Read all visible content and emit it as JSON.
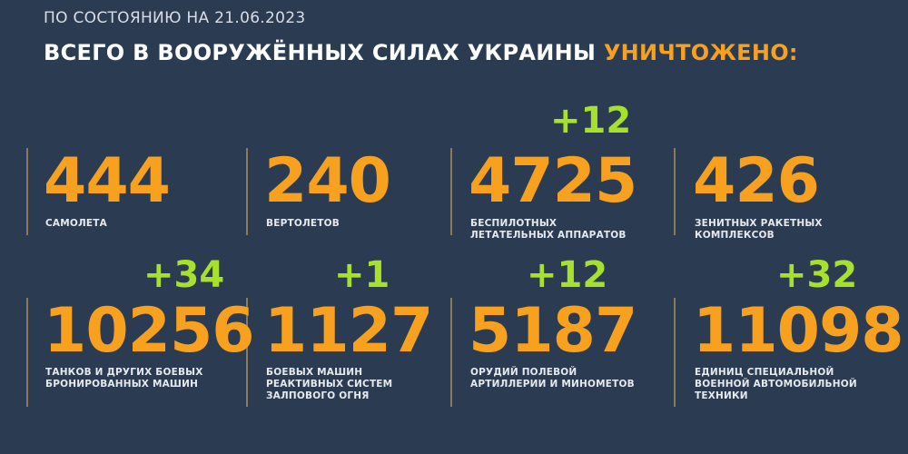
{
  "header": {
    "date_line": "ПО СОСТОЯНИЮ НА 21.06.2023",
    "title_main": "ВСЕГО В ВООРУЖЁННЫХ СИЛАХ УКРАИНЫ ",
    "title_highlight": "УНИЧТОЖЕНО:"
  },
  "colors": {
    "background": "#2a3b52",
    "number": "#f7a11f",
    "delta": "#a8e12b",
    "highlight": "#f7a11f"
  },
  "stats": [
    {
      "value": "444",
      "label": "САМОЛЕТА",
      "delta": ""
    },
    {
      "value": "240",
      "label": "ВЕРТОЛЕТОВ",
      "delta": ""
    },
    {
      "value": "4725",
      "label": "БЕСПИЛОТНЫХ\nЛЕТАТЕЛЬНЫХ АППАРАТОВ",
      "delta": "+12"
    },
    {
      "value": "426",
      "label": "ЗЕНИТНЫХ РАКЕТНЫХ\nКОМПЛЕКСОВ",
      "delta": ""
    },
    {
      "value": "10256",
      "label": "ТАНКОВ И ДРУГИХ БОЕВЫХ\nБРОНИРОВАННЫХ МАШИН",
      "delta": "+34"
    },
    {
      "value": "1127",
      "label": "БОЕВЫХ МАШИН\nРЕАКТИВНЫХ СИСТЕМ\nЗАЛПОВОГО ОГНЯ",
      "delta": "+1"
    },
    {
      "value": "5187",
      "label": "ОРУДИЙ ПОЛЕВОЙ\nАРТИЛЛЕРИИ И МИНОМЕТОВ",
      "delta": "+12"
    },
    {
      "value": "11098",
      "label": "ЕДИНИЦ СПЕЦИАЛЬНОЙ\nВОЕННОЙ АВТОМОБИЛЬНОЙ\nТЕХНИКИ",
      "delta": "+32"
    }
  ]
}
